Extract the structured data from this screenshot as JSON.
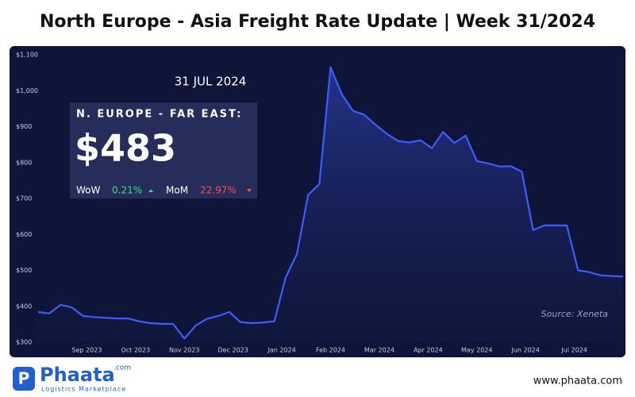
{
  "chart_data": {
    "type": "line",
    "title": "North Europe - Asia Freight Rate Update | Week 31/2024",
    "xticks": [
      "Sep 2023",
      "Oct 2023",
      "Nov 2023",
      "Dec 2023",
      "Jan 2024",
      "Feb 2024",
      "Mar 2024",
      "Apr 2024",
      "May 2024",
      "Jun 2024",
      "Jul 2024"
    ],
    "values": [
      384,
      380,
      404,
      397,
      373,
      370,
      368,
      366,
      366,
      358,
      353,
      351,
      351,
      310,
      346,
      365,
      373,
      384,
      356,
      353,
      355,
      358,
      480,
      545,
      710,
      740,
      1065,
      990,
      944,
      933,
      905,
      880,
      860,
      856,
      862,
      840,
      885,
      855,
      875,
      804,
      798,
      789,
      790,
      775,
      612,
      625,
      625,
      625,
      500,
      495,
      486,
      484,
      483
    ],
    "color": "#3d5cff",
    "ylim": [
      300,
      1100
    ],
    "yticks": [
      {
        "value": 300,
        "label": "$300"
      },
      {
        "value": 400,
        "label": "$400"
      },
      {
        "value": 500,
        "label": "$500"
      },
      {
        "value": 600,
        "label": "$600"
      },
      {
        "value": 700,
        "label": "$700"
      },
      {
        "value": 800,
        "label": "$800"
      },
      {
        "value": 900,
        "label": "$900"
      },
      {
        "value": 1000,
        "label": "$1,000"
      },
      {
        "value": 1100,
        "label": "$1,100"
      }
    ],
    "grid": false,
    "source": "Source: Xeneta"
  },
  "info_box": {
    "date": "31 JUL 2024",
    "route": "N. EUROPE - FAR EAST:",
    "rate": "$483",
    "wow_label": "WoW",
    "wow_value": "0.21%",
    "mom_label": "MoM",
    "mom_value": "22.97%"
  },
  "footer": {
    "brand": "Phaata",
    "brand_suffix": ".com",
    "tagline": "Logistics Marketplace",
    "website": "www.phaata.com"
  }
}
